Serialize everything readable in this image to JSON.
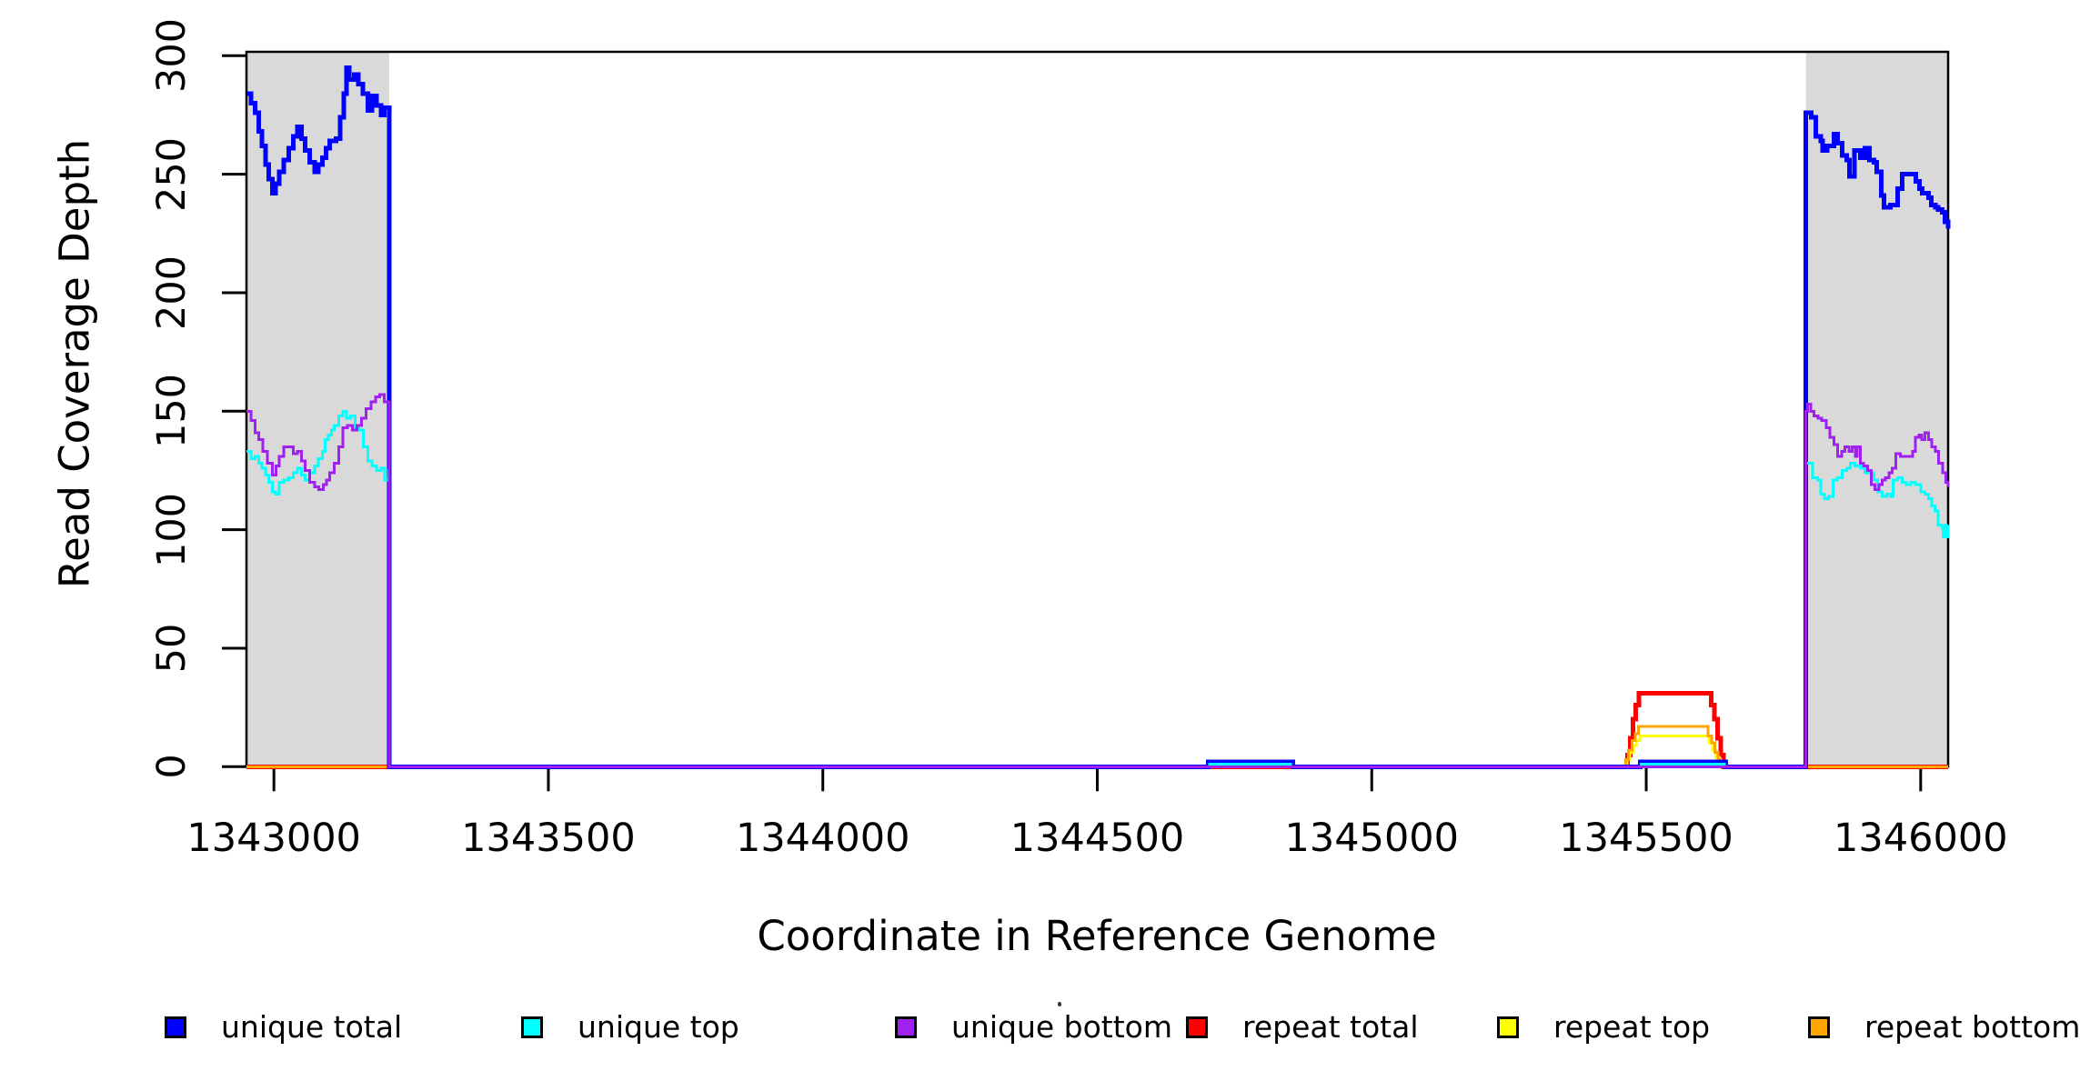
{
  "chart_data": {
    "type": "line",
    "title": "",
    "xlabel": "Coordinate in Reference Genome",
    "ylabel": "Read Coverage Depth",
    "x_range": [
      1342950,
      1346050
    ],
    "y_range": [
      0,
      300
    ],
    "x_ticks": [
      1343000,
      1343500,
      1344000,
      1344500,
      1345000,
      1345500,
      1346000
    ],
    "y_ticks": [
      0,
      50,
      100,
      150,
      200,
      250,
      300
    ],
    "grid": false,
    "step_lines": true,
    "legend_position": "bottom",
    "background_color": "#ffffff",
    "highlight_regions": [
      {
        "name": "left-flank",
        "x0": 1342950,
        "x1": 1343210,
        "color": "#d9d9d9"
      },
      {
        "name": "right-flank",
        "x0": 1345791,
        "x1": 1346050,
        "color": "#d9d9d9"
      }
    ],
    "series": [
      {
        "name": "repeat total",
        "color": "#ff0000",
        "line_width": 5,
        "points": [
          [
            1342950,
            0
          ],
          [
            1345464,
            0
          ],
          [
            1345466,
            5
          ],
          [
            1345471,
            12
          ],
          [
            1345476,
            20
          ],
          [
            1345481,
            26
          ],
          [
            1345487,
            31
          ],
          [
            1345612,
            31
          ],
          [
            1345618,
            26
          ],
          [
            1345624,
            20
          ],
          [
            1345630,
            12
          ],
          [
            1345636,
            5
          ],
          [
            1345641,
            0
          ],
          [
            1346050,
            0
          ]
        ]
      },
      {
        "name": "repeat top",
        "color": "#ffff00",
        "line_width": 3,
        "points": [
          [
            1342950,
            0
          ],
          [
            1345463,
            0
          ],
          [
            1345465,
            3
          ],
          [
            1345470,
            6
          ],
          [
            1345476,
            9
          ],
          [
            1345482,
            11
          ],
          [
            1345488,
            13
          ],
          [
            1345609,
            13
          ],
          [
            1345615,
            10
          ],
          [
            1345621,
            7
          ],
          [
            1345627,
            4
          ],
          [
            1345633,
            2
          ],
          [
            1345639,
            0
          ],
          [
            1346050,
            0
          ]
        ]
      },
      {
        "name": "repeat bottom",
        "color": "#ffa500",
        "line_width": 3,
        "points": [
          [
            1342950,
            0
          ],
          [
            1345461,
            0
          ],
          [
            1345463,
            3
          ],
          [
            1345468,
            7
          ],
          [
            1345474,
            11
          ],
          [
            1345480,
            14
          ],
          [
            1345486,
            17
          ],
          [
            1345607,
            17
          ],
          [
            1345613,
            13
          ],
          [
            1345619,
            10
          ],
          [
            1345625,
            6
          ],
          [
            1345631,
            3
          ],
          [
            1345637,
            0
          ],
          [
            1346050,
            0
          ]
        ]
      },
      {
        "name": "unique total",
        "color": "#0000ff",
        "line_width": 5,
        "points": [
          [
            1342950,
            284
          ],
          [
            1342958,
            280
          ],
          [
            1342966,
            276
          ],
          [
            1342972,
            268
          ],
          [
            1342978,
            262
          ],
          [
            1342985,
            254
          ],
          [
            1342991,
            248
          ],
          [
            1342997,
            242
          ],
          [
            1343003,
            246
          ],
          [
            1343010,
            251
          ],
          [
            1343018,
            256
          ],
          [
            1343027,
            261
          ],
          [
            1343035,
            266
          ],
          [
            1343043,
            270
          ],
          [
            1343050,
            265
          ],
          [
            1343057,
            260
          ],
          [
            1343065,
            255
          ],
          [
            1343074,
            251
          ],
          [
            1343081,
            254
          ],
          [
            1343088,
            257
          ],
          [
            1343095,
            261
          ],
          [
            1343102,
            264
          ],
          [
            1343113,
            265
          ],
          [
            1343121,
            274
          ],
          [
            1343127,
            284
          ],
          [
            1343132,
            295
          ],
          [
            1343137,
            290
          ],
          [
            1343146,
            292
          ],
          [
            1343154,
            288
          ],
          [
            1343162,
            284
          ],
          [
            1343171,
            277
          ],
          [
            1343179,
            283
          ],
          [
            1343187,
            279
          ],
          [
            1343195,
            275
          ],
          [
            1343201,
            278
          ],
          [
            1343209,
            278
          ],
          [
            1343210,
            0
          ],
          [
            1344700,
            0
          ],
          [
            1344702,
            2
          ],
          [
            1344854,
            2
          ],
          [
            1344856,
            0
          ],
          [
            1345487,
            0
          ],
          [
            1345489,
            2
          ],
          [
            1345643,
            2
          ],
          [
            1345645,
            0
          ],
          [
            1345790,
            0
          ],
          [
            1345791,
            276
          ],
          [
            1345801,
            274
          ],
          [
            1345809,
            266
          ],
          [
            1345818,
            264
          ],
          [
            1345821,
            260
          ],
          [
            1345830,
            262
          ],
          [
            1345842,
            267
          ],
          [
            1345849,
            263
          ],
          [
            1345857,
            258
          ],
          [
            1345865,
            256
          ],
          [
            1345870,
            249
          ],
          [
            1345879,
            260
          ],
          [
            1345890,
            257
          ],
          [
            1345898,
            261
          ],
          [
            1345907,
            256
          ],
          [
            1345915,
            255
          ],
          [
            1345920,
            251
          ],
          [
            1345928,
            241
          ],
          [
            1345933,
            236
          ],
          [
            1345945,
            237
          ],
          [
            1345958,
            244
          ],
          [
            1345966,
            250
          ],
          [
            1345986,
            250
          ],
          [
            1345991,
            247
          ],
          [
            1345998,
            244
          ],
          [
            1346003,
            242
          ],
          [
            1346014,
            240
          ],
          [
            1346019,
            237
          ],
          [
            1346027,
            236
          ],
          [
            1346032,
            235
          ],
          [
            1346039,
            234
          ],
          [
            1346044,
            230
          ],
          [
            1346050,
            227
          ]
        ]
      },
      {
        "name": "unique top",
        "color": "#00ffff",
        "line_width": 3,
        "points": [
          [
            1342950,
            133
          ],
          [
            1342958,
            130
          ],
          [
            1342966,
            131
          ],
          [
            1342972,
            128
          ],
          [
            1342978,
            126
          ],
          [
            1342985,
            123
          ],
          [
            1342991,
            120
          ],
          [
            1342997,
            116
          ],
          [
            1343003,
            115
          ],
          [
            1343010,
            120
          ],
          [
            1343018,
            121
          ],
          [
            1343027,
            122
          ],
          [
            1343035,
            124
          ],
          [
            1343043,
            126
          ],
          [
            1343050,
            123
          ],
          [
            1343057,
            121
          ],
          [
            1343065,
            124
          ],
          [
            1343074,
            127
          ],
          [
            1343081,
            130
          ],
          [
            1343088,
            133
          ],
          [
            1343093,
            138
          ],
          [
            1343099,
            140
          ],
          [
            1343105,
            142
          ],
          [
            1343110,
            144
          ],
          [
            1343118,
            148
          ],
          [
            1343126,
            150
          ],
          [
            1343132,
            147
          ],
          [
            1343140,
            148
          ],
          [
            1343148,
            143
          ],
          [
            1343155,
            142
          ],
          [
            1343163,
            135
          ],
          [
            1343171,
            129
          ],
          [
            1343179,
            127
          ],
          [
            1343187,
            125
          ],
          [
            1343195,
            126
          ],
          [
            1343202,
            121
          ],
          [
            1343209,
            125
          ],
          [
            1343210,
            0
          ],
          [
            1344703,
            0
          ],
          [
            1344705,
            1
          ],
          [
            1344850,
            1
          ],
          [
            1344852,
            0
          ],
          [
            1345489,
            0
          ],
          [
            1345491,
            1
          ],
          [
            1345640,
            1
          ],
          [
            1345642,
            0
          ],
          [
            1345790,
            0
          ],
          [
            1345791,
            128
          ],
          [
            1345798,
            128
          ],
          [
            1345803,
            122
          ],
          [
            1345812,
            121
          ],
          [
            1345818,
            115
          ],
          [
            1345825,
            113
          ],
          [
            1345832,
            114
          ],
          [
            1345840,
            121
          ],
          [
            1345848,
            122
          ],
          [
            1345857,
            125
          ],
          [
            1345865,
            126
          ],
          [
            1345872,
            128
          ],
          [
            1345880,
            127
          ],
          [
            1345890,
            126
          ],
          [
            1345898,
            124
          ],
          [
            1345907,
            124
          ],
          [
            1345915,
            121
          ],
          [
            1345922,
            116
          ],
          [
            1345930,
            114
          ],
          [
            1345938,
            115
          ],
          [
            1345945,
            114
          ],
          [
            1345950,
            121
          ],
          [
            1345958,
            122
          ],
          [
            1345966,
            120
          ],
          [
            1345974,
            119
          ],
          [
            1345982,
            120
          ],
          [
            1345990,
            119
          ],
          [
            1346000,
            116
          ],
          [
            1346008,
            115
          ],
          [
            1346014,
            113
          ],
          [
            1346020,
            110
          ],
          [
            1346026,
            108
          ],
          [
            1346032,
            102
          ],
          [
            1346038,
            101
          ],
          [
            1346041,
            97
          ],
          [
            1346044,
            102
          ],
          [
            1346047,
            97
          ],
          [
            1346050,
            102
          ]
        ]
      },
      {
        "name": "unique bottom",
        "color": "#a020f0",
        "line_width": 3,
        "points": [
          [
            1342950,
            150
          ],
          [
            1342958,
            146
          ],
          [
            1342966,
            141
          ],
          [
            1342972,
            138
          ],
          [
            1342980,
            133
          ],
          [
            1342988,
            128
          ],
          [
            1342997,
            123
          ],
          [
            1343004,
            127
          ],
          [
            1343010,
            131
          ],
          [
            1343018,
            135
          ],
          [
            1343027,
            135
          ],
          [
            1343035,
            132
          ],
          [
            1343043,
            133
          ],
          [
            1343050,
            129
          ],
          [
            1343057,
            125
          ],
          [
            1343065,
            120
          ],
          [
            1343074,
            118
          ],
          [
            1343082,
            117
          ],
          [
            1343090,
            119
          ],
          [
            1343096,
            121
          ],
          [
            1343102,
            124
          ],
          [
            1343110,
            128
          ],
          [
            1343118,
            135
          ],
          [
            1343126,
            143
          ],
          [
            1343134,
            144
          ],
          [
            1343143,
            142
          ],
          [
            1343151,
            144
          ],
          [
            1343160,
            147
          ],
          [
            1343168,
            151
          ],
          [
            1343177,
            154
          ],
          [
            1343185,
            156
          ],
          [
            1343193,
            157
          ],
          [
            1343201,
            154
          ],
          [
            1343209,
            154
          ],
          [
            1343210,
            0
          ],
          [
            1345790,
            0
          ],
          [
            1345791,
            150
          ],
          [
            1345794,
            153
          ],
          [
            1345800,
            150
          ],
          [
            1345806,
            148
          ],
          [
            1345813,
            147
          ],
          [
            1345820,
            146
          ],
          [
            1345828,
            143
          ],
          [
            1345835,
            139
          ],
          [
            1345842,
            136
          ],
          [
            1345849,
            131
          ],
          [
            1345856,
            133
          ],
          [
            1345862,
            135
          ],
          [
            1345869,
            133
          ],
          [
            1345875,
            135
          ],
          [
            1345881,
            131
          ],
          [
            1345884,
            135
          ],
          [
            1345890,
            128
          ],
          [
            1345896,
            127
          ],
          [
            1345903,
            125
          ],
          [
            1345910,
            119
          ],
          [
            1345917,
            117
          ],
          [
            1345924,
            119
          ],
          [
            1345930,
            121
          ],
          [
            1345936,
            122
          ],
          [
            1345942,
            124
          ],
          [
            1345948,
            126
          ],
          [
            1345955,
            132
          ],
          [
            1345963,
            131
          ],
          [
            1345970,
            131
          ],
          [
            1345978,
            131
          ],
          [
            1345985,
            133
          ],
          [
            1345990,
            139
          ],
          [
            1345997,
            140
          ],
          [
            1346002,
            138
          ],
          [
            1346008,
            141
          ],
          [
            1346014,
            138
          ],
          [
            1346020,
            135
          ],
          [
            1346027,
            133
          ],
          [
            1346033,
            128
          ],
          [
            1346040,
            124
          ],
          [
            1346046,
            120
          ],
          [
            1346050,
            118
          ]
        ]
      }
    ],
    "legend": [
      {
        "label": "unique total",
        "color": "#0000ff"
      },
      {
        "label": "unique top",
        "color": "#00ffff"
      },
      {
        "label": "unique bottom",
        "color": "#a020f0"
      },
      {
        "label": "repeat total",
        "color": "#ff0000"
      },
      {
        "label": "repeat top",
        "color": "#ffff00"
      },
      {
        "label": "repeat bottom",
        "color": "#ffa500"
      }
    ]
  },
  "axes": {
    "x_title": "Coordinate in Reference Genome",
    "y_title": "Read Coverage Depth"
  }
}
